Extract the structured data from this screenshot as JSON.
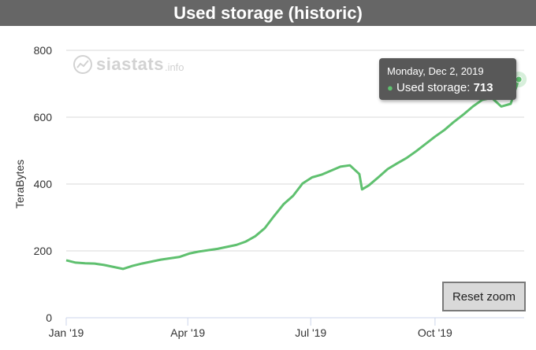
{
  "title": "Used storage (historic)",
  "logo": {
    "icon": "trend-icon",
    "name": "siastats",
    "suffix": ".info"
  },
  "tooltip": {
    "date": "Monday, Dec 2, 2019",
    "label": "Used storage: ",
    "value": "713"
  },
  "reset_zoom_label": "Reset zoom",
  "colors": {
    "title_bar": "#666666",
    "series": "#5fc06f",
    "tooltip_bg": "#585858"
  },
  "chart_data": {
    "type": "line",
    "title": "Used storage (historic)",
    "ylabel": "TeraBytes",
    "xlabel": "",
    "ylim": [
      0,
      800
    ],
    "yticks": [
      "0",
      "200",
      "400",
      "600",
      "800"
    ],
    "xticks": [
      "Jan '19",
      "Apr '19",
      "Jul '19",
      "Oct '19"
    ],
    "grid": true,
    "legend": "none",
    "series": [
      {
        "x": [
          "2019-01-01",
          "2019-01-08",
          "2019-01-15",
          "2019-01-22",
          "2019-01-29",
          "2019-02-05",
          "2019-02-12",
          "2019-02-19",
          "2019-02-26",
          "2019-03-05",
          "2019-03-12",
          "2019-03-19",
          "2019-03-26",
          "2019-04-02",
          "2019-04-09",
          "2019-04-16",
          "2019-04-23",
          "2019-04-30",
          "2019-05-07",
          "2019-05-14",
          "2019-05-21",
          "2019-05-28",
          "2019-06-04",
          "2019-06-11",
          "2019-06-18",
          "2019-06-25",
          "2019-07-02",
          "2019-07-09",
          "2019-07-16",
          "2019-07-23",
          "2019-07-30",
          "2019-08-06",
          "2019-08-08",
          "2019-08-13",
          "2019-08-20",
          "2019-08-27",
          "2019-09-03",
          "2019-09-10",
          "2019-09-17",
          "2019-09-24",
          "2019-10-01",
          "2019-10-08",
          "2019-10-15",
          "2019-10-22",
          "2019-10-29",
          "2019-11-05",
          "2019-11-12",
          "2019-11-19",
          "2019-11-26",
          "2019-12-02"
        ],
        "values": [
          172,
          165,
          163,
          162,
          158,
          152,
          146,
          155,
          162,
          168,
          174,
          178,
          182,
          192,
          198,
          202,
          206,
          212,
          218,
          228,
          244,
          268,
          305,
          340,
          365,
          402,
          420,
          428,
          440,
          452,
          456,
          430,
          384,
          396,
          420,
          445,
          462,
          478,
          498,
          520,
          542,
          562,
          586,
          608,
          632,
          652,
          658,
          632,
          640,
          713
        ]
      }
    ]
  }
}
